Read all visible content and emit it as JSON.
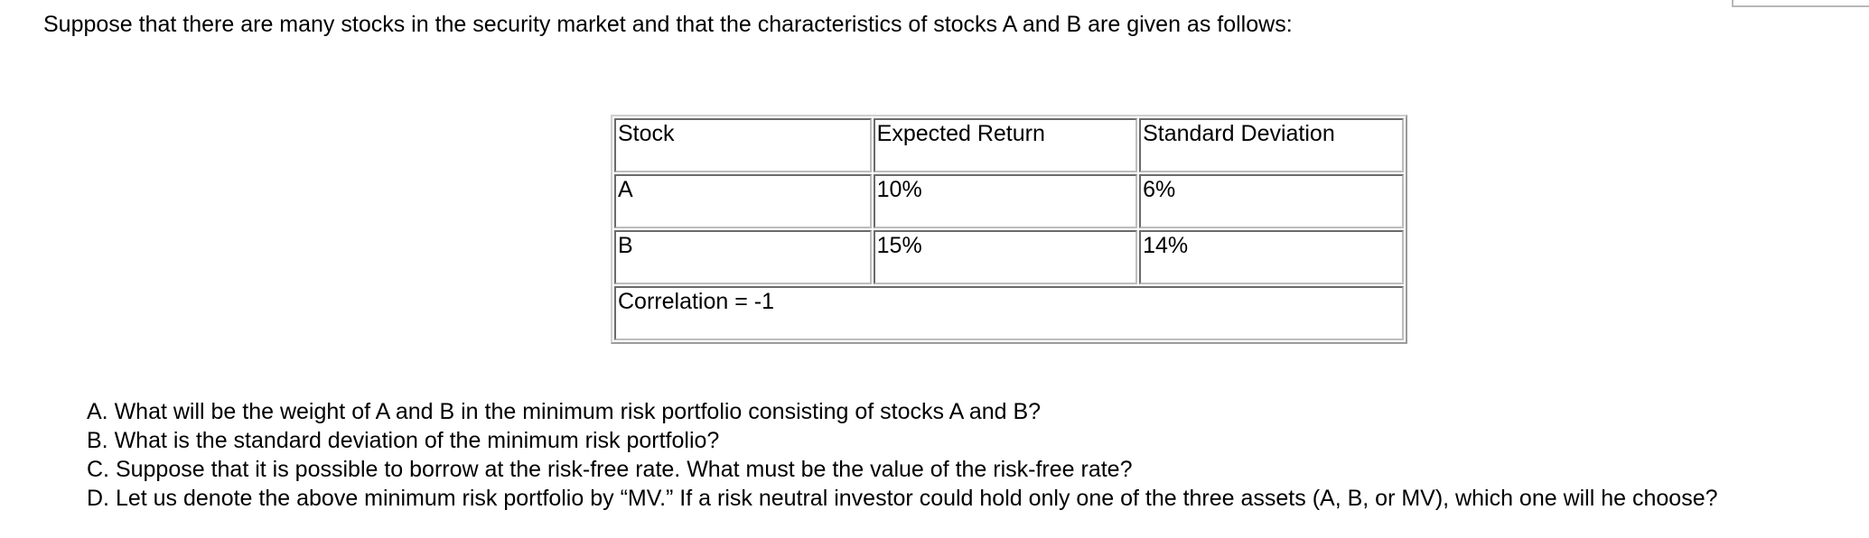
{
  "intro": "Suppose that there are many stocks in the security market and that the characteristics of stocks A and B are given as follows:",
  "table": {
    "headers": [
      "Stock",
      "Expected Return",
      "Standard Deviation"
    ],
    "rows": [
      [
        "A",
        "10%",
        "6%"
      ],
      [
        "B",
        "15%",
        "14%"
      ]
    ],
    "footer": "Correlation = -1"
  },
  "questions": [
    "A.  What will be the weight of A and B in the minimum risk portfolio consisting of stocks A and B?",
    "B.  What is the standard deviation of the minimum risk portfolio?",
    "C. Suppose that it is possible to borrow at the risk-free rate. What must be the value of the risk-free rate?",
    "D. Let us denote the above minimum risk portfolio by “MV.”  If a risk neutral investor could hold only one of the three assets (A, B, or MV), which one will he choose?"
  ]
}
